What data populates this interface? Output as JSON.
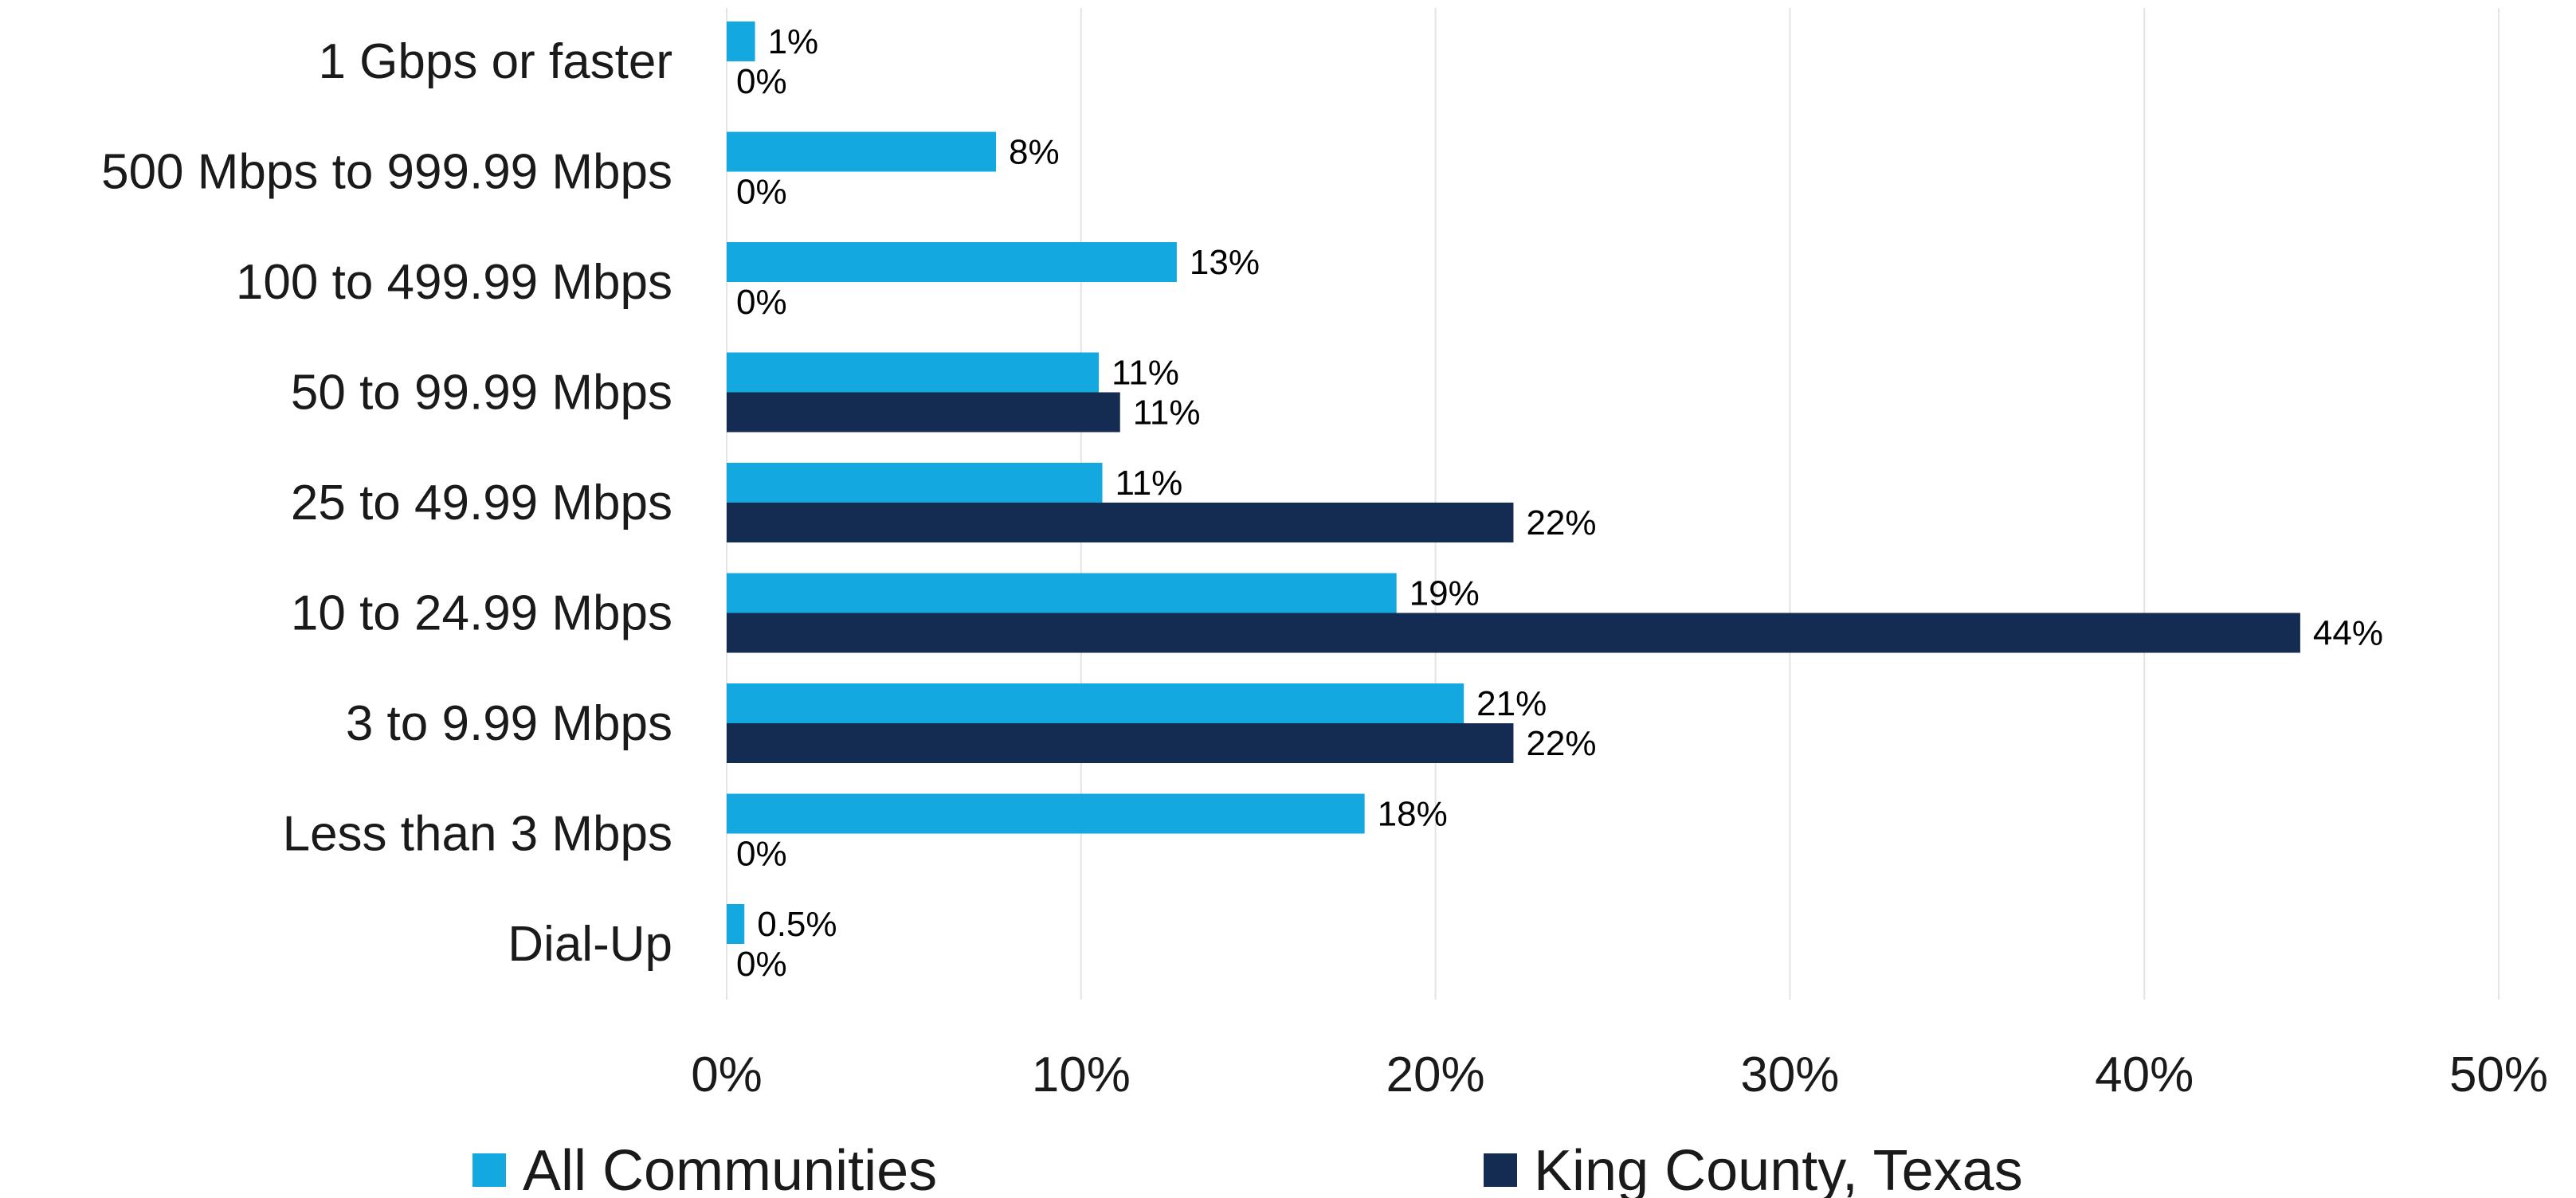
{
  "chart_data": {
    "type": "bar",
    "orientation": "horizontal",
    "categories": [
      "1 Gbps or faster",
      "500 Mbps to 999.99 Mbps",
      "100 to 499.99 Mbps",
      "50 to 99.99 Mbps",
      "25 to 49.99 Mbps",
      "10 to 24.99 Mbps",
      "3 to 9.99 Mbps",
      "Less than 3 Mbps",
      "Dial-Up"
    ],
    "series": [
      {
        "name": "All Communities",
        "color": "#14a8e0",
        "values": [
          0.8,
          7.6,
          12.7,
          10.5,
          10.6,
          18.9,
          20.8,
          18.0,
          0.5
        ],
        "labels": [
          "1%",
          "8%",
          "13%",
          "11%",
          "11%",
          "19%",
          "21%",
          "18%",
          "0.5%"
        ]
      },
      {
        "name": "King County, Texas",
        "color": "#152c52",
        "values": [
          0,
          0,
          0,
          11.1,
          22.2,
          44.4,
          22.2,
          0,
          0
        ],
        "labels": [
          "0%",
          "0%",
          "0%",
          "11%",
          "22%",
          "44%",
          "22%",
          "0%",
          "0%"
        ]
      }
    ],
    "xlim": [
      0,
      50
    ],
    "xticks": [
      0,
      10,
      20,
      30,
      40,
      50
    ],
    "xtick_labels": [
      "0%",
      "10%",
      "20%",
      "30%",
      "40%",
      "50%"
    ],
    "grid": "vertical",
    "legend_position": "bottom",
    "title": "",
    "xlabel": "",
    "ylabel": ""
  }
}
